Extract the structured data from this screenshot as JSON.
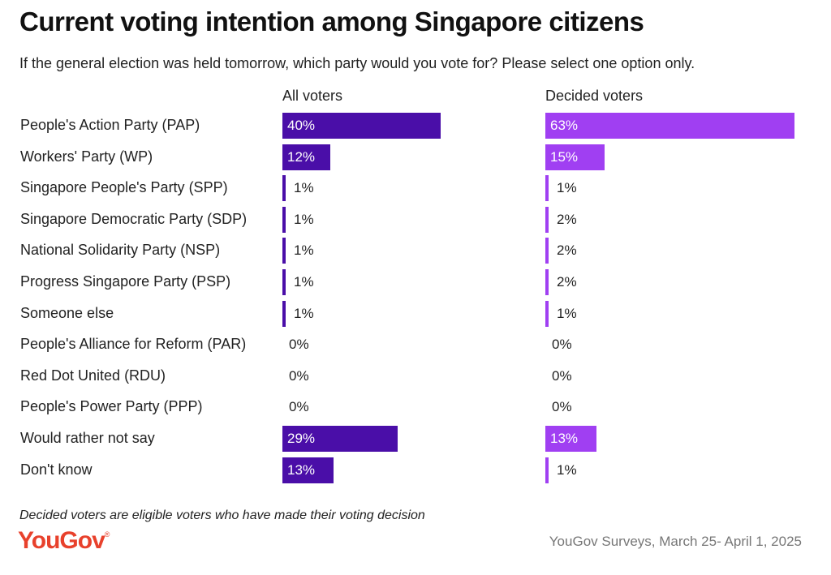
{
  "title": "Current voting intention among Singapore citizens",
  "subtitle": "If the general election was held tomorrow, which party would you vote for? Please select one option only.",
  "footnote": "Decided voters are eligible voters who have made their voting decision",
  "logo": "YouGov",
  "source": "YouGov Surveys, March 25- April 1, 2025",
  "chart_data": {
    "type": "bar",
    "orientation": "horizontal",
    "title": "Current voting intention among Singapore citizens",
    "unit": "%",
    "categories": [
      "People's Action Party (PAP)",
      "Workers' Party (WP)",
      "Singapore People's Party (SPP)",
      "Singapore Democratic Party (SDP)",
      "National Solidarity Party (NSP)",
      "Progress Singapore Party (PSP)",
      "Someone else",
      "People's Alliance for Reform (PAR)",
      "Red Dot United (RDU)",
      "People's Power Party (PPP)",
      "Would rather not say",
      "Don't know"
    ],
    "series": [
      {
        "name": "All voters",
        "color": "#4a0ea8",
        "values": [
          40,
          12,
          1,
          1,
          1,
          1,
          1,
          0,
          0,
          0,
          29,
          13
        ]
      },
      {
        "name": "Decided voters",
        "color": "#a03ff2",
        "values": [
          63,
          15,
          1,
          2,
          2,
          2,
          1,
          0,
          0,
          0,
          13,
          1
        ]
      }
    ]
  }
}
